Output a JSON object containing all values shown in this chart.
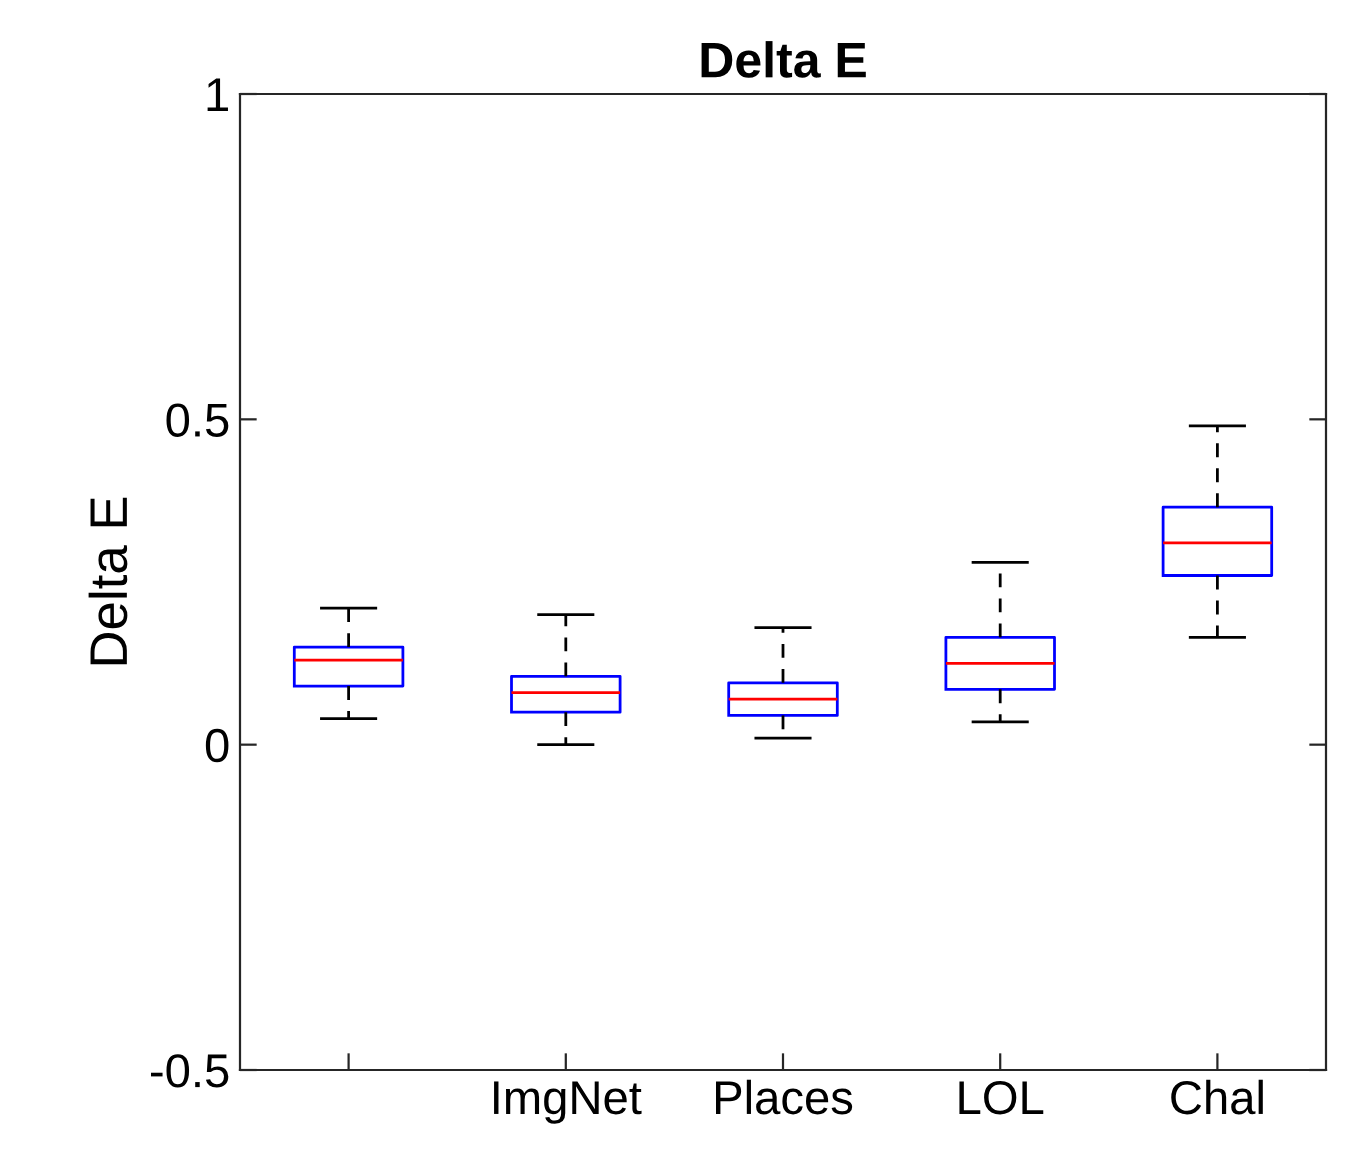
{
  "chart_data": {
    "type": "box",
    "title": "Delta E",
    "ylabel": "Delta E",
    "categories": [
      null,
      "ImgNet",
      "Places",
      "LOL",
      "Chal"
    ],
    "boxes": [
      {
        "low": 0.04,
        "q1": 0.09,
        "median": 0.13,
        "q3": 0.15,
        "high": 0.21
      },
      {
        "low": 0.0,
        "q1": 0.05,
        "median": 0.08,
        "q3": 0.105,
        "high": 0.2
      },
      {
        "low": 0.01,
        "q1": 0.045,
        "median": 0.07,
        "q3": 0.095,
        "high": 0.18
      },
      {
        "low": 0.035,
        "q1": 0.085,
        "median": 0.125,
        "q3": 0.165,
        "high": 0.28
      },
      {
        "low": 0.165,
        "q1": 0.26,
        "median": 0.31,
        "q3": 0.365,
        "high": 0.49
      }
    ],
    "color": "#0000ff",
    "ylim": [
      -0.5,
      1
    ],
    "yticks": [
      -0.5,
      0,
      0.5,
      1
    ]
  }
}
